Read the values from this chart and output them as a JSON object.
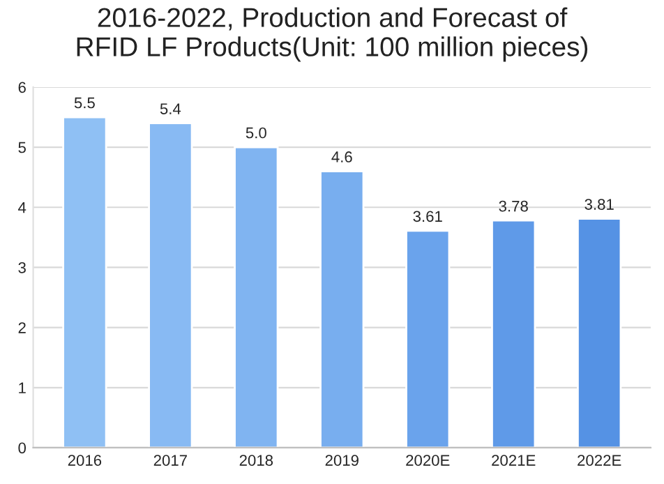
{
  "chart_data": {
    "type": "bar",
    "title": "2016-2022, Production and Forecast of\nRFID LF Products(Unit: 100 million pieces)",
    "categories": [
      "2016",
      "2017",
      "2018",
      "2019",
      "2020E",
      "2021E",
      "2022E"
    ],
    "values": [
      5.5,
      5.4,
      5.0,
      4.6,
      3.61,
      3.78,
      3.81
    ],
    "value_labels": [
      "5.5",
      "5.4",
      "5.0",
      "4.6",
      "3.61",
      "3.78",
      "3.81"
    ],
    "colors": [
      "#8fc0f4",
      "#88baf3",
      "#80b4f1",
      "#78aeef",
      "#6aa3ec",
      "#5f9ae8",
      "#5592e4"
    ],
    "ylim": [
      0,
      6
    ],
    "yticks": [
      0,
      1,
      2,
      3,
      4,
      5,
      6
    ],
    "grid": "y"
  }
}
